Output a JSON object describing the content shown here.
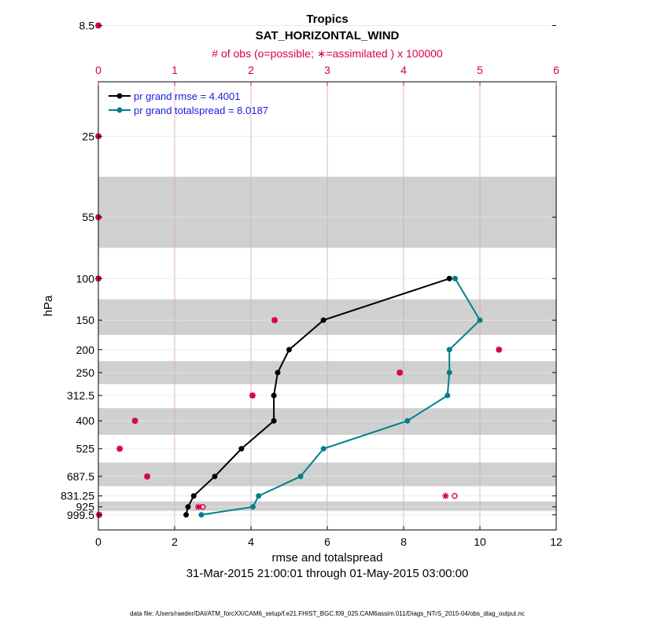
{
  "chart_data": {
    "type": "line",
    "title": "Tropics",
    "subtitle": "SAT_HORIZONTAL_WIND",
    "top_axis_label": "# of obs (o=possible; ∗=assimilated ) x 100000",
    "xlabel": "rmse and totalspread",
    "ylabel": "hPa",
    "date_range": "31-Mar-2015 21:00:01 through 01-May-2015 03:00:00",
    "footer": "data file: /Users/raeder/DAI/ATM_forcXX/CAM6_setup/f.e21.FHIST_BGC.f09_025.CAM6assim.011/Diags_NTrS_2015-04/obs_diag_output.nc",
    "xlim": [
      0,
      12
    ],
    "x_ticks": [
      0,
      2,
      4,
      6,
      8,
      10,
      12
    ],
    "top_xlim": [
      0,
      6
    ],
    "top_ticks": [
      0,
      1,
      2,
      3,
      4,
      5,
      6
    ],
    "y_ticks": [
      "8.5",
      "25",
      "55",
      "100",
      "150",
      "200",
      "250",
      "312.5",
      "400",
      "525",
      "687.5",
      "831.25",
      "925",
      "999.5"
    ],
    "y_axis_scale": "log",
    "legend_position": "top-left",
    "colors": {
      "rmse": "#000000",
      "spread": "#00808a",
      "obs": "#d6004f",
      "band": "#d0d0d0",
      "grid": "#d9a3b4"
    },
    "levels": [
      8.5,
      25,
      55,
      100,
      150,
      200,
      250,
      312.5,
      400,
      525,
      687.5,
      831.25,
      925,
      999.5
    ],
    "series": [
      {
        "name": "pr grand rmse = 4.4001",
        "levels": [
          100,
          150,
          200,
          250,
          312.5,
          400,
          525,
          687.5,
          831.25,
          925,
          999.5
        ],
        "values": [
          9.2,
          5.9,
          5.0,
          4.7,
          4.6,
          4.6,
          3.75,
          3.05,
          2.5,
          2.35,
          2.3
        ]
      },
      {
        "name": "pr grand totalspread = 8.0187",
        "levels": [
          100,
          150,
          200,
          250,
          312.5,
          400,
          525,
          687.5,
          831.25,
          925,
          999.5
        ],
        "values": [
          9.35,
          10.0,
          9.2,
          9.2,
          9.15,
          8.1,
          5.9,
          5.3,
          4.2,
          4.05,
          2.7
        ]
      }
    ],
    "obs_assimilated": {
      "levels": [
        8.5,
        25,
        55,
        100,
        150,
        200,
        250,
        312.5,
        400,
        525,
        687.5,
        831.25,
        925,
        999.5
      ],
      "values": [
        0.0,
        0.0,
        0.0,
        0.0,
        2.31,
        5.25,
        3.95,
        2.02,
        0.48,
        0.28,
        0.64,
        4.55,
        1.31,
        0.01
      ]
    },
    "obs_possible": {
      "levels": [
        8.5,
        25,
        55,
        100,
        150,
        200,
        250,
        312.5,
        400,
        525,
        687.5,
        831.25,
        925,
        999.5
      ],
      "values": [
        0.0,
        0.0,
        0.0,
        0.0,
        2.31,
        5.25,
        3.95,
        2.02,
        0.48,
        0.28,
        0.64,
        4.67,
        1.37,
        0.01
      ]
    },
    "grid": true
  }
}
